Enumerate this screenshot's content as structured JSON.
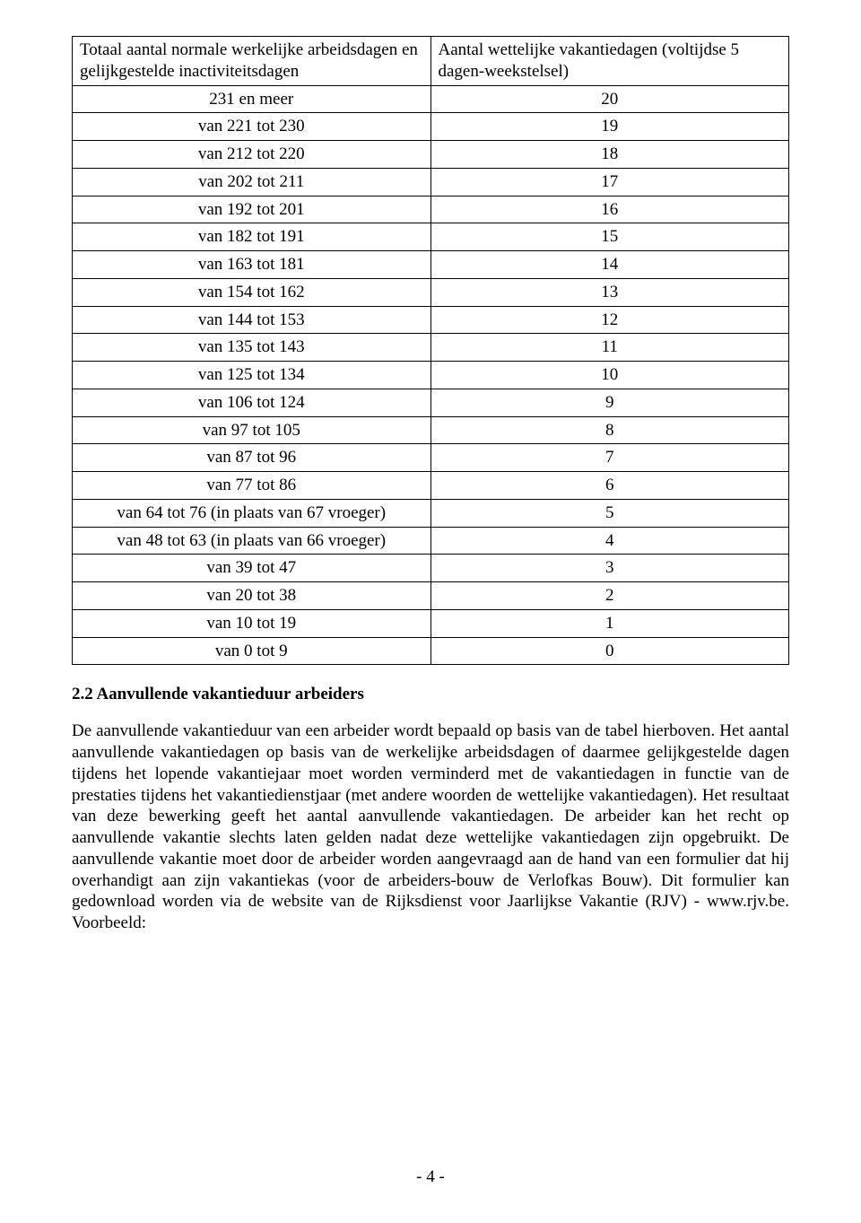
{
  "table": {
    "header_left": "Totaal aantal normale werkelijke arbeidsdagen en gelijkgestelde inactiviteitsdagen",
    "header_right": "Aantal wettelijke vakantiedagen (voltijdse 5 dagen-weekstelsel)",
    "rows": [
      {
        "left": "231 en meer",
        "right": "20"
      },
      {
        "left": "van 221 tot 230",
        "right": "19"
      },
      {
        "left": "van 212 tot 220",
        "right": "18"
      },
      {
        "left": "van 202 tot 211",
        "right": "17"
      },
      {
        "left": "van 192 tot 201",
        "right": "16"
      },
      {
        "left": "van 182 tot 191",
        "right": "15"
      },
      {
        "left": "van 163 tot 181",
        "right": "14"
      },
      {
        "left": "van 154 tot 162",
        "right": "13"
      },
      {
        "left": "van 144 tot 153",
        "right": "12"
      },
      {
        "left": "van 135 tot 143",
        "right": "11"
      },
      {
        "left": "van 125 tot 134",
        "right": "10"
      },
      {
        "left": "van 106 tot 124",
        "right": "9"
      },
      {
        "left": "van 97 tot 105",
        "right": "8"
      },
      {
        "left": "van 87 tot 96",
        "right": "7"
      },
      {
        "left": "van 77 tot 86",
        "right": "6"
      },
      {
        "left": "van 64 tot 76 (in plaats van 67 vroeger)",
        "right": "5"
      },
      {
        "left": "van 48 tot 63 (in plaats van 66 vroeger)",
        "right": "4"
      },
      {
        "left": "van 39 tot 47",
        "right": "3"
      },
      {
        "left": "van 20 tot 38",
        "right": "2"
      },
      {
        "left": "van 10 tot 19",
        "right": "1"
      },
      {
        "left": "van 0 tot 9",
        "right": "0"
      }
    ]
  },
  "section": {
    "title": "2.2 Aanvullende vakantieduur arbeiders",
    "paragraph": "De aanvullende vakantieduur van een arbeider wordt bepaald op basis van de tabel hierboven. Het aantal aanvullende vakantiedagen op basis van de werkelijke arbeidsdagen of daarmee gelijkgestelde dagen tijdens het lopende vakantiejaar moet worden verminderd met de vakantiedagen in functie van de prestaties tijdens het vakantiedienstjaar (met andere woorden de wettelijke vakantiedagen). Het resultaat van deze bewerking geeft het aantal aanvullende vakantiedagen. De arbeider kan het recht op aanvullende vakantie slechts laten gelden nadat deze wettelijke vakantiedagen zijn opgebruikt. De aanvullende vakantie moet door de arbeider worden aangevraagd aan de hand van een formulier dat hij overhandigt aan zijn vakantiekas (voor de arbeiders-bouw de Verlofkas Bouw). Dit formulier kan gedownload worden via de website van de Rijksdienst voor Jaarlijkse Vakantie (RJV) - www.rjv.be. Voorbeeld:"
  },
  "page_number": "- 4 -"
}
